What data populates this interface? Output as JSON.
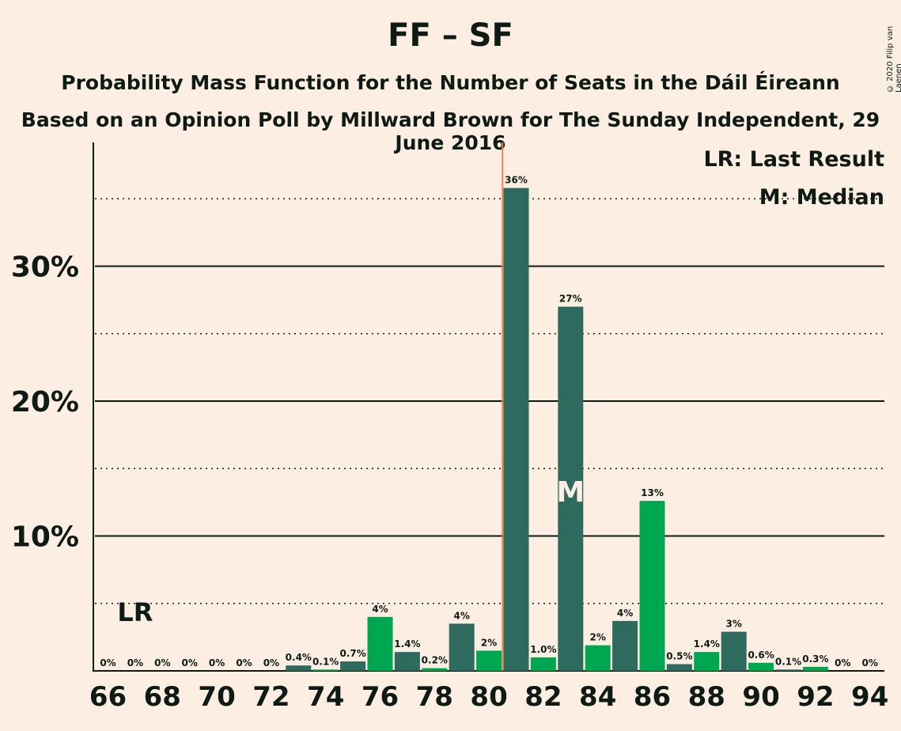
{
  "title": "FF – SF",
  "subtitle": "Probability Mass Function for the Number of Seats in the Dáil Éireann",
  "source": "Based on an Opinion Poll by Millward Brown for The Sunday Independent, 29 June 2016",
  "copyright": "© 2020 Filip van Laenen",
  "legend": {
    "last_result": "LR: Last Result",
    "median": "M: Median"
  },
  "colors": {
    "background": "#FDEEE3",
    "bar_dark": "#2F6A5E",
    "bar_green": "#00A650",
    "last_result_line": "#E8874A",
    "text": "#0E1A14"
  },
  "chart_data": {
    "type": "bar",
    "x": [
      66,
      67,
      68,
      69,
      70,
      71,
      72,
      73,
      74,
      75,
      76,
      77,
      78,
      79,
      80,
      81,
      82,
      83,
      84,
      85,
      86,
      87,
      88,
      89,
      90,
      91,
      92,
      93,
      94
    ],
    "values": [
      0,
      0,
      0,
      0,
      0,
      0,
      0,
      0.4,
      0.1,
      0.7,
      4.0,
      1.4,
      0.2,
      3.5,
      1.5,
      35.8,
      1.0,
      27.0,
      1.9,
      3.7,
      12.6,
      0.5,
      1.4,
      2.9,
      0.6,
      0.1,
      0.3,
      0,
      0
    ],
    "labels": [
      "0%",
      "0%",
      "0%",
      "0%",
      "0%",
      "0%",
      "0%",
      "0.4%",
      "0.1%",
      "0.7%",
      "4%",
      "1.4%",
      "0.2%",
      "4%",
      "2%",
      "36%",
      "1.0%",
      "27%",
      "2%",
      "4%",
      "13%",
      "0.5%",
      "1.4%",
      "3%",
      "0.6%",
      "0.1%",
      "0.3%",
      "0%",
      "0%"
    ],
    "ylim": [
      0,
      39
    ],
    "yticks": [
      10,
      20,
      30
    ],
    "ytick_labels": [
      "10%",
      "20%",
      "30%"
    ],
    "xticks": [
      66,
      68,
      70,
      72,
      74,
      76,
      78,
      80,
      82,
      84,
      86,
      88,
      90,
      92,
      94
    ],
    "xtick_labels": [
      "66",
      "68",
      "70",
      "72",
      "74",
      "76",
      "78",
      "80",
      "82",
      "84",
      "86",
      "88",
      "90",
      "92",
      "94"
    ],
    "last_result": 80.5,
    "last_result_label_at": 67,
    "last_result_label": "LR",
    "median": 83,
    "median_label": "M",
    "grid": "solid major lines at 10% intervals, dotted minor lines at 5% offsets"
  }
}
